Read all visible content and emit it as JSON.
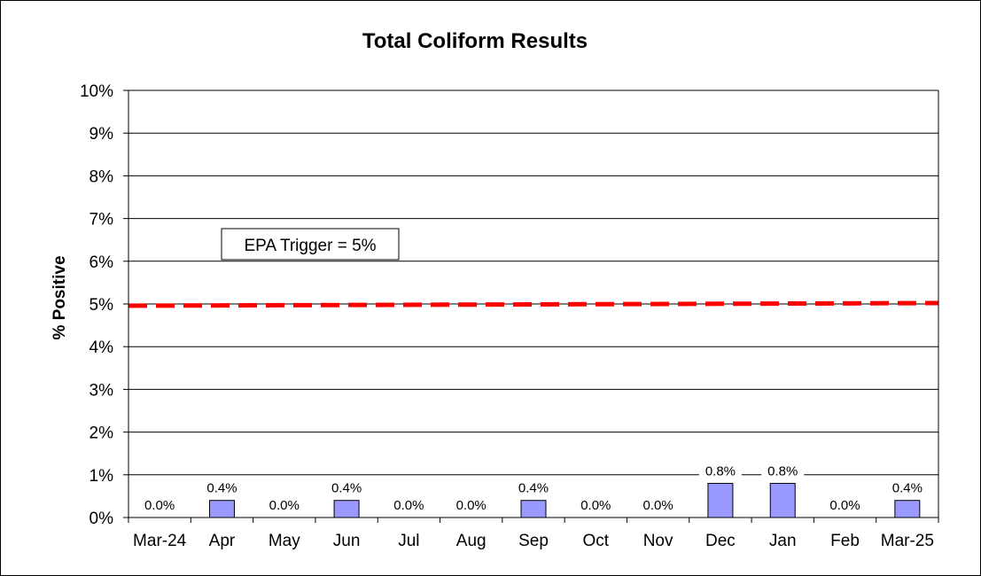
{
  "chart_data": {
    "type": "bar",
    "title": "Total Coliform Results",
    "xlabel": "",
    "ylabel": "% Positive",
    "categories": [
      "Mar-24",
      "Apr",
      "May",
      "Jun",
      "Jul",
      "Aug",
      "Sep",
      "Oct",
      "Nov",
      "Dec",
      "Jan",
      "Feb",
      "Mar-25"
    ],
    "values": [
      0.0,
      0.4,
      0.0,
      0.4,
      0.0,
      0.0,
      0.4,
      0.0,
      0.0,
      0.8,
      0.8,
      0.0,
      0.4
    ],
    "data_labels": [
      "0.0%",
      "0.4%",
      "0.0%",
      "0.4%",
      "0.0%",
      "0.0%",
      "0.4%",
      "0.0%",
      "0.0%",
      "0.8%",
      "0.8%",
      "0.0%",
      "0.4%"
    ],
    "ylim": [
      0,
      10
    ],
    "yticks": [
      0,
      1,
      2,
      3,
      4,
      5,
      6,
      7,
      8,
      9,
      10
    ],
    "ytick_labels": [
      "0%",
      "1%",
      "2%",
      "3%",
      "4%",
      "5%",
      "6%",
      "7%",
      "8%",
      "9%",
      "10%"
    ],
    "grid": true,
    "threshold": {
      "value": 5,
      "style": "dashed"
    },
    "annotation": "EPA Trigger = 5%",
    "colors": {
      "bar_fill": "#9999FF",
      "bar_stroke": "#000000",
      "threshold": "#FF0000"
    }
  }
}
